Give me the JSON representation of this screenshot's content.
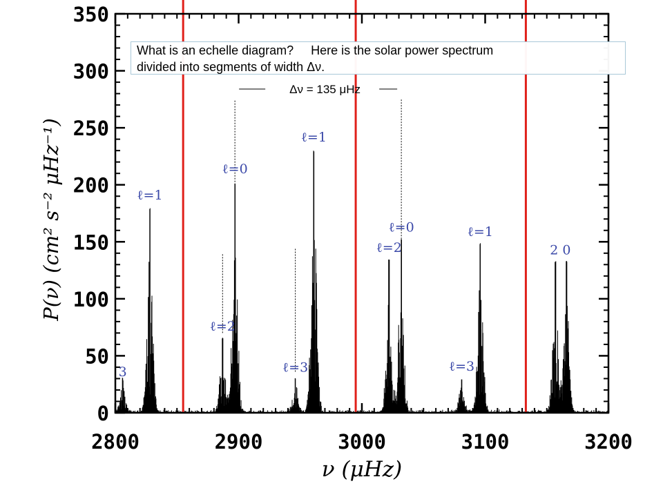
{
  "textbox": {
    "line1": "What is an echelle diagram?     Here is the solar power spectrum",
    "line2": "divided into segments of width Δν."
  },
  "colors": {
    "spectrum": "#000000",
    "separators": "#e0201a",
    "mode_labels": "#3a48a8"
  },
  "chart_data": {
    "type": "line",
    "xlabel": "ν (μHz)",
    "ylabel": "P(ν) (cm² s⁻² μHz⁻¹)",
    "xlim": [
      2800,
      3200
    ],
    "ylim": [
      0,
      350
    ],
    "x_ticks": [
      2800,
      2900,
      3000,
      3100,
      3200
    ],
    "y_ticks": [
      0,
      50,
      100,
      150,
      200,
      250,
      300,
      350
    ],
    "grid": false,
    "series": [
      {
        "peaks": [
          {
            "x": 2806,
            "y": 28
          },
          {
            "x": 2828,
            "y": 178
          },
          {
            "x": 2887,
            "y": 65
          },
          {
            "x": 2897,
            "y": 201
          },
          {
            "x": 2946,
            "y": 30
          },
          {
            "x": 2961,
            "y": 229
          },
          {
            "x": 3022,
            "y": 134
          },
          {
            "x": 3032,
            "y": 152
          },
          {
            "x": 3081,
            "y": 29
          },
          {
            "x": 3096,
            "y": 147
          },
          {
            "x": 3157,
            "y": 132
          },
          {
            "x": 3166,
            "y": 132
          }
        ]
      }
    ],
    "separators": [
      2855,
      2995,
      3133
    ],
    "spacing_annotation": {
      "text": "Δν = 135 μHz",
      "x_start": 2897,
      "x_end": 3032,
      "y": 284
    },
    "mode_labels": [
      {
        "text": "3",
        "x": 2806,
        "y": 32
      },
      {
        "text": "ℓ=1",
        "x": 2828,
        "y": 187
      },
      {
        "text": "ℓ=2",
        "x": 2887,
        "y": 72
      },
      {
        "text": "ℓ=0",
        "x": 2897,
        "y": 210
      },
      {
        "text": "ℓ=3",
        "x": 2946,
        "y": 36
      },
      {
        "text": "ℓ=1",
        "x": 2961,
        "y": 238
      },
      {
        "text": "ℓ=2",
        "x": 3022,
        "y": 141
      },
      {
        "text": "ℓ=0",
        "x": 3032,
        "y": 159
      },
      {
        "text": "ℓ=3",
        "x": 3081,
        "y": 37
      },
      {
        "text": "ℓ=1",
        "x": 3096,
        "y": 155
      },
      {
        "text": "2 0",
        "x": 3161,
        "y": 139
      }
    ]
  }
}
